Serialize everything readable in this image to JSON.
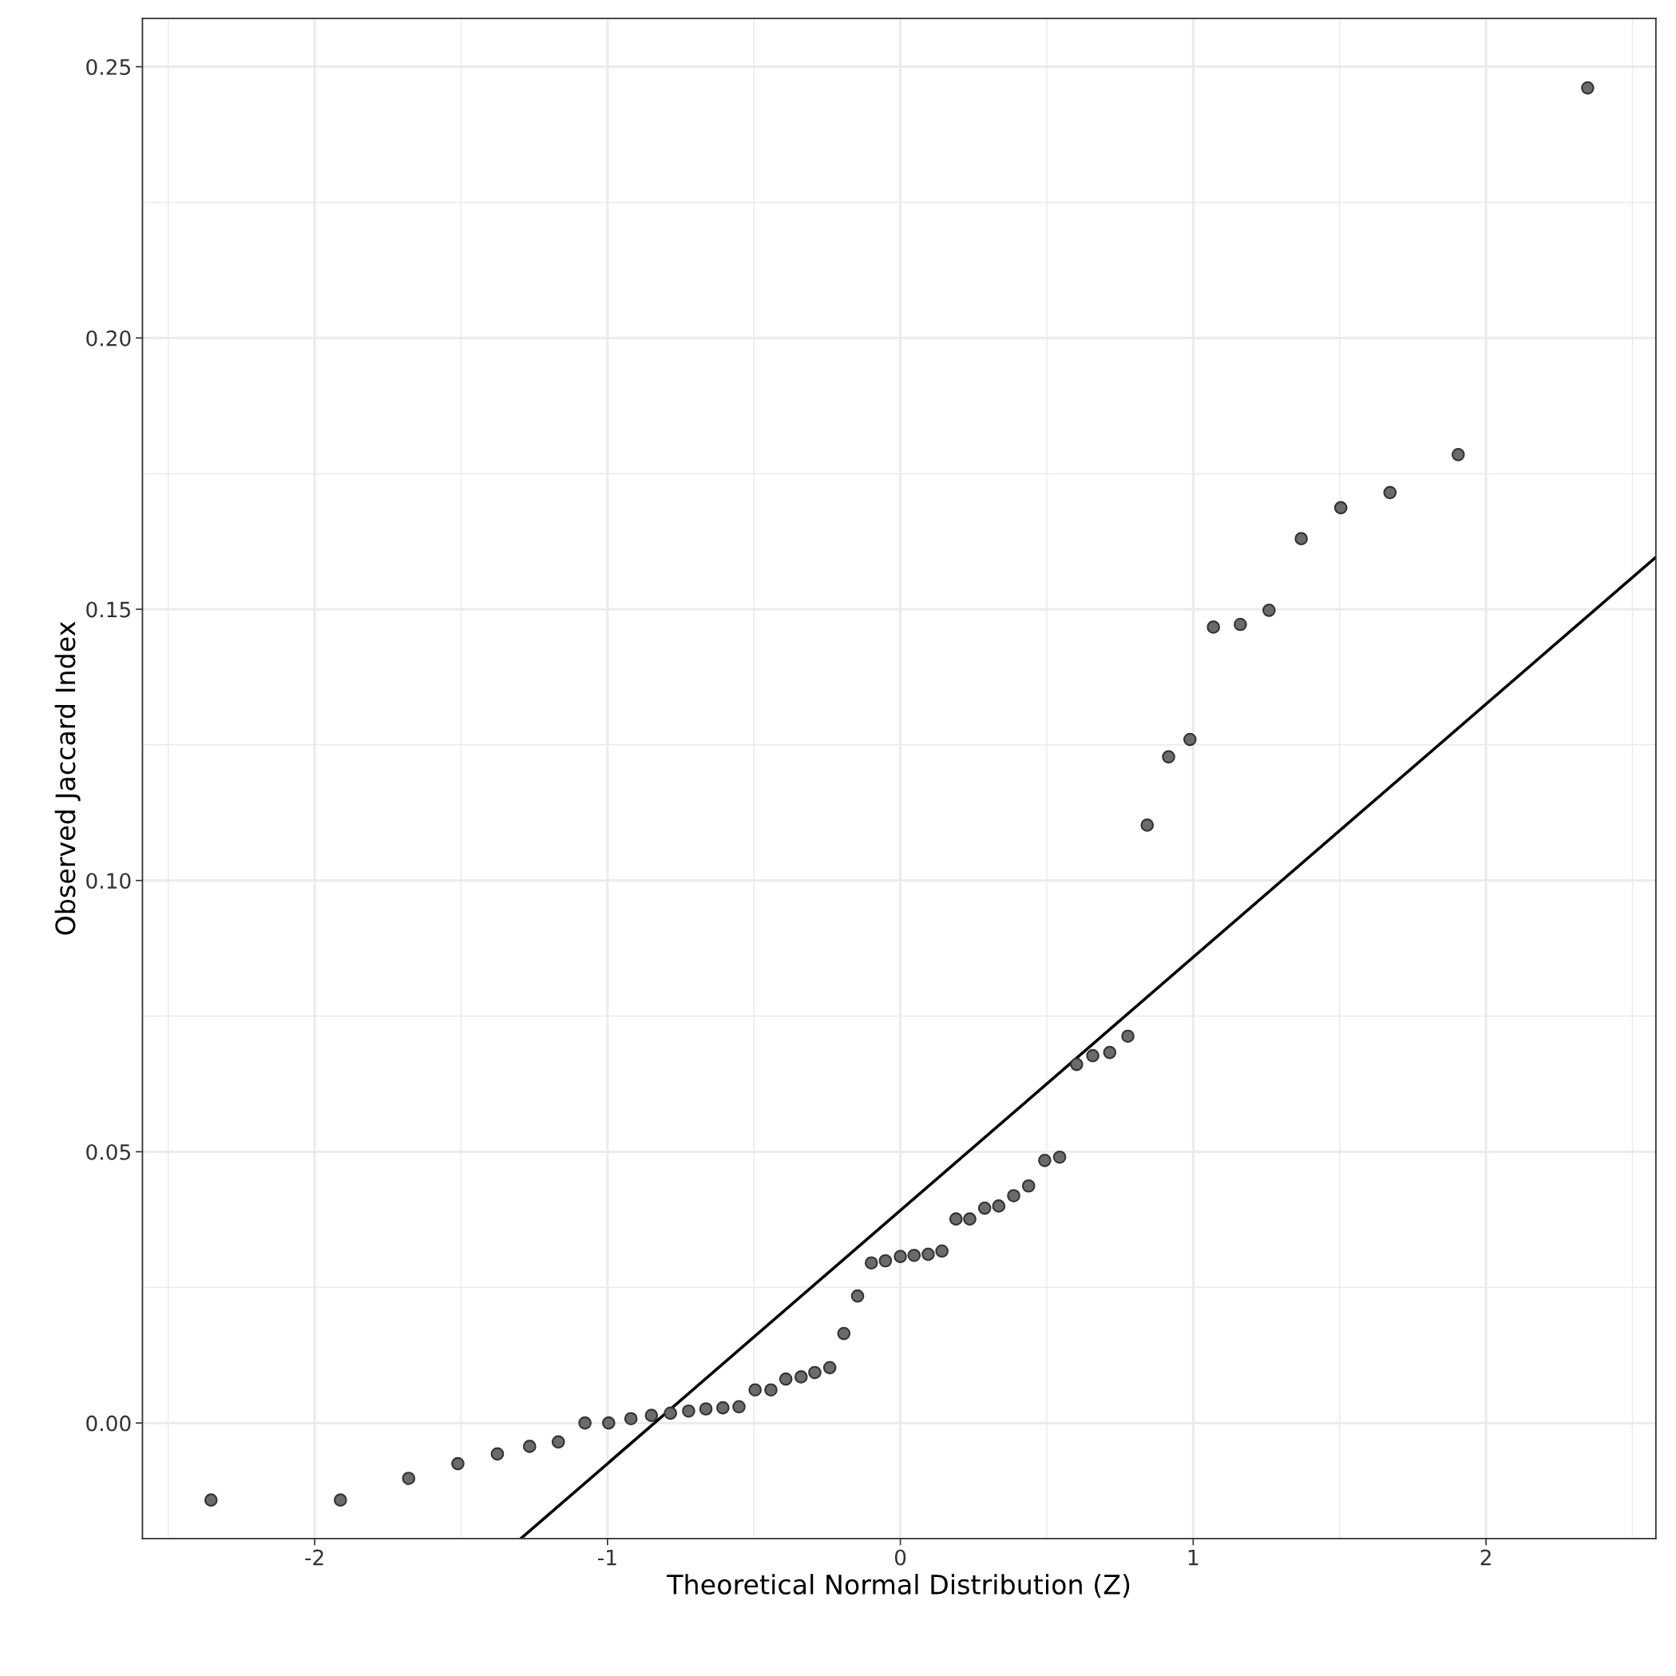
{
  "chart_data": {
    "type": "scatter",
    "xlabel": "Theoretical Normal Distribution (Z)",
    "ylabel": "Observed Jaccard Index",
    "xlim": [
      -2.588,
      2.58
    ],
    "ylim": [
      -0.0213,
      0.2589
    ],
    "xticks": [
      -2,
      -1,
      0,
      1,
      2
    ],
    "yticks": [
      {
        "value": 0,
        "label": "0.00"
      },
      {
        "value": 0.05,
        "label": "0.05"
      },
      {
        "value": 0.1,
        "label": "0.10"
      },
      {
        "value": 0.15,
        "label": "0.15"
      },
      {
        "value": 0.2,
        "label": "0.20"
      },
      {
        "value": 0.25,
        "label": "0.25"
      }
    ],
    "grid": true,
    "marker": "circle",
    "legend": false,
    "series": [
      {
        "color": "#6b6b6b",
        "x": [
          -2.354,
          -1.912,
          -1.679,
          -1.511,
          -1.376,
          -1.266,
          -1.168,
          -1.077,
          -0.996,
          -0.92,
          -0.85,
          -0.785,
          -0.723,
          -0.664,
          -0.606,
          -0.551,
          -0.496,
          -0.442,
          -0.391,
          -0.339,
          -0.292,
          -0.241,
          -0.193,
          -0.146,
          -0.099,
          -0.051,
          0.0,
          0.047,
          0.095,
          0.142,
          0.19,
          0.237,
          0.288,
          0.336,
          0.387,
          0.438,
          0.493,
          0.544,
          0.602,
          0.657,
          0.715,
          0.777,
          0.843,
          0.916,
          0.989,
          1.069,
          1.161,
          1.259,
          1.369,
          1.504,
          1.672,
          1.905,
          2.347
        ],
        "values": [
          -0.0142,
          -0.0142,
          -0.0102,
          -0.0075,
          -0.0057,
          -0.0043,
          -0.0035,
          0.0,
          0.0,
          0.0008,
          0.0014,
          0.0018,
          0.0022,
          0.0026,
          0.0028,
          0.003,
          0.0061,
          0.0061,
          0.0081,
          0.0085,
          0.0093,
          0.0102,
          0.0165,
          0.0234,
          0.0295,
          0.0299,
          0.0307,
          0.0309,
          0.0311,
          0.0317,
          0.0376,
          0.0376,
          0.0396,
          0.04,
          0.0419,
          0.0437,
          0.0484,
          0.049,
          0.0661,
          0.0677,
          0.0683,
          0.0713,
          0.1102,
          0.1228,
          0.126,
          0.1467,
          0.1472,
          0.1498,
          0.163,
          0.1687,
          0.1715,
          0.1785,
          0.2461
        ]
      },
      {
        "type": "line",
        "color": "#000000",
        "marker": "none",
        "line_style": "solid",
        "x": [
          -1.296,
          2.58
        ],
        "values": [
          -0.0213,
          0.1596
        ]
      }
    ]
  }
}
